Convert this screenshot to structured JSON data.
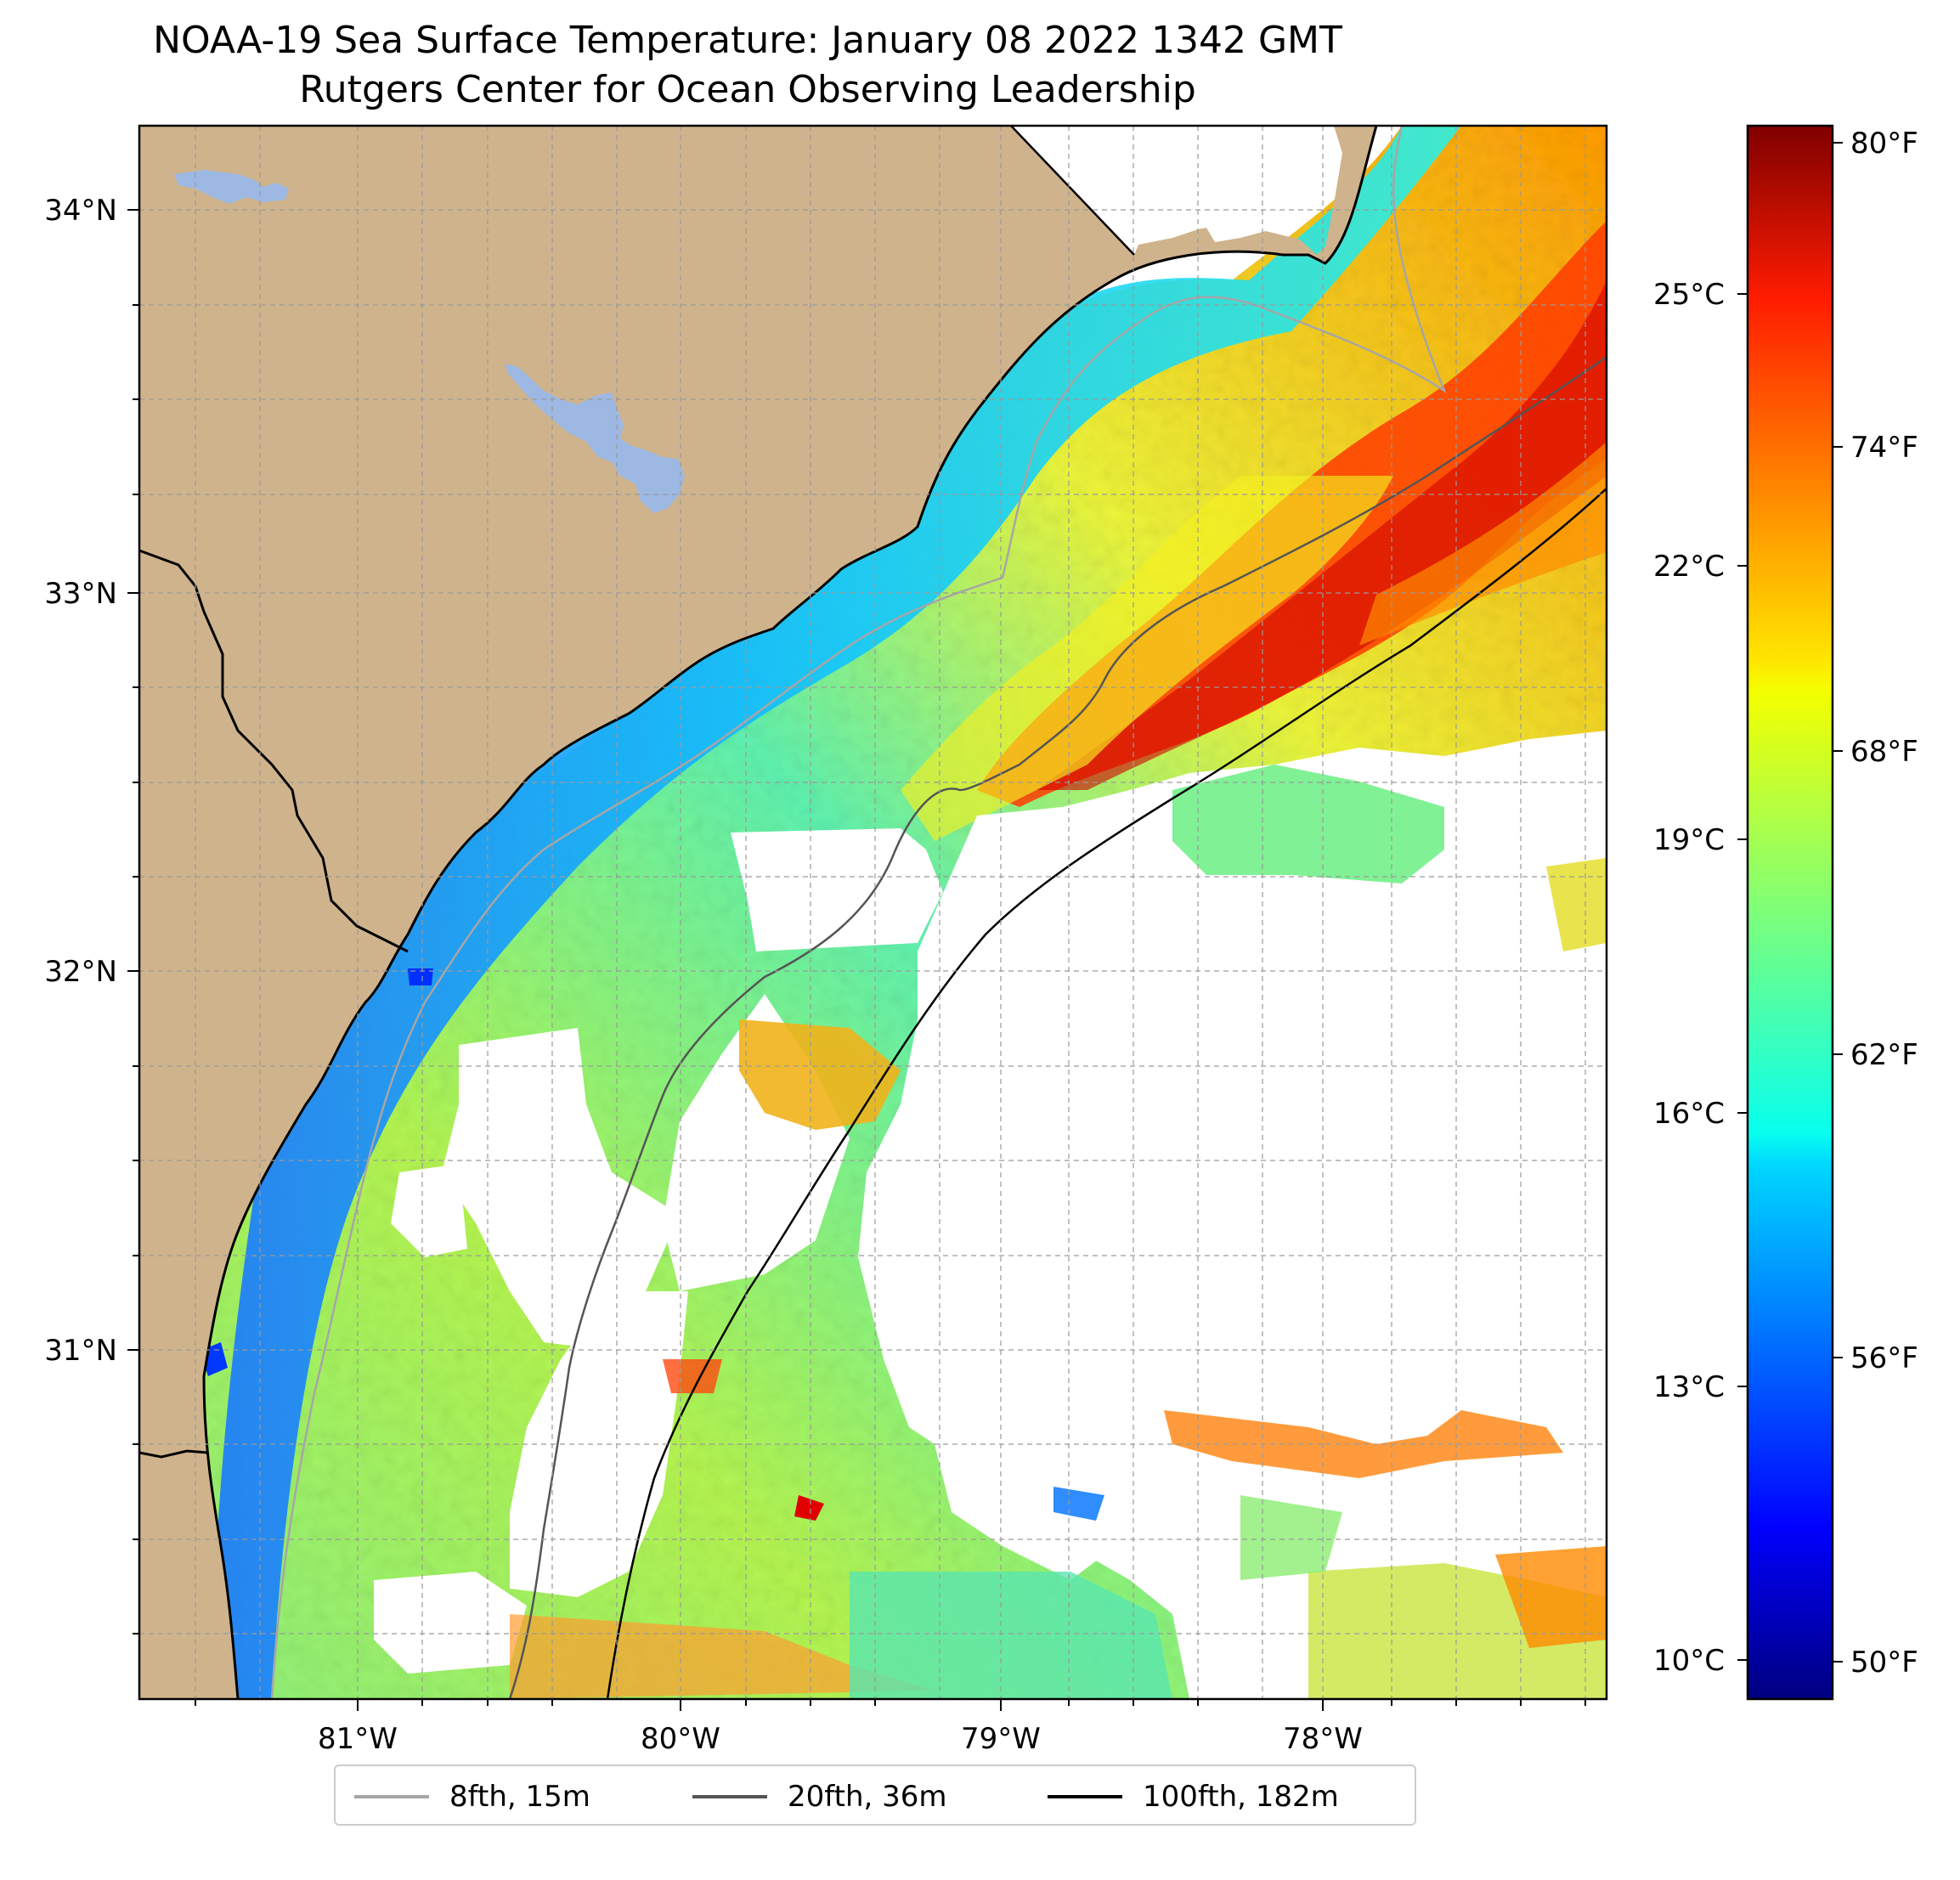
{
  "title_line1": "NOAA-19 Sea Surface Temperature: January 08 2022 1342 GMT",
  "title_line2": "Rutgers Center for Ocean Observing Leadership",
  "map": {
    "lon_range": [
      -81.68,
      -77.12
    ],
    "lat_range": [
      30.08,
      34.22
    ],
    "gridlines": true,
    "land_color": "#cfb38c",
    "lake_color": "#9db8e3",
    "lon_tick_labels": [
      "81°W",
      "80°W",
      "79°W",
      "78°W"
    ],
    "lat_tick_labels": [
      "34°N",
      "33°N",
      "32°N",
      "31°N"
    ]
  },
  "colorbar": {
    "colormap": "jet",
    "range_celsius": [
      9.5,
      27.2
    ],
    "celsius_labels": [
      "25°C",
      "22°C",
      "19°C",
      "16°C",
      "13°C",
      "10°C"
    ],
    "fahrenheit_labels": [
      "80°F",
      "74°F",
      "68°F",
      "62°F",
      "56°F",
      "50°F"
    ]
  },
  "legend": {
    "items": [
      {
        "label": "8fth, 15m",
        "color": "#a6a6a6"
      },
      {
        "label": "20fth, 36m",
        "color": "#555555"
      },
      {
        "label": "100fth, 182m",
        "color": "#000000"
      }
    ]
  }
}
